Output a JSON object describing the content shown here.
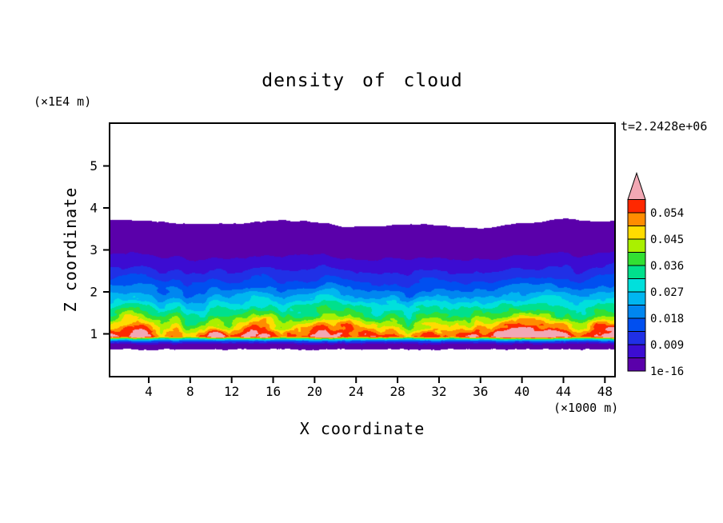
{
  "chart_data": {
    "type": "heatmap",
    "title": "density of cloud",
    "timestamp": "t=2.2428e+06",
    "xlabel": "X coordinate",
    "ylabel": "Z coordinate",
    "x_unit": "(×1000 m)",
    "y_unit": "(×1E4 m)",
    "x_range": [
      0.3,
      48.9
    ],
    "x_ticks": [
      4,
      8,
      12,
      16,
      20,
      24,
      28,
      32,
      36,
      40,
      44,
      48
    ],
    "z_range": [
      0,
      6
    ],
    "z_ticks": [
      1,
      2,
      3,
      4,
      5
    ],
    "grid": false,
    "legend_position": "right-colorbar",
    "levels": {
      "min_label": "1e-16",
      "step": 0.0045,
      "max_labeled": 0.054
    },
    "colorbar": {
      "labels_bottom_to_top": [
        "1e-16",
        "0.009",
        "0.018",
        "0.027",
        "0.036",
        "0.045",
        "0.054"
      ],
      "segment_colors_bottom_to_top": [
        "#5a00aa",
        "#3c0cd2",
        "#2030e6",
        "#004ff0",
        "#0086f0",
        "#00b6f0",
        "#00e0dc",
        "#00e08c",
        "#32e032",
        "#aaf000",
        "#ffdc00",
        "#ff8c00",
        "#ff2800"
      ],
      "overflow_color": "#f2a8b4"
    },
    "field": {
      "description": "Horizontally stratified cloud-density cross-section: white clear air above ~z=3.7 and below ~z=0.6; density increases downward from cloud top (violet, ~1e-16) through blue, cyan, green, yellow and orange bands to a red maximum layer near z=0.9-1.0 with pink patches exceeding 0.054; thin dark-blue band at cloud base.",
      "cloud_top_z": 3.66,
      "cloud_top_dip_x": 32.5,
      "cloud_base_z": 0.63,
      "peak_z": 0.93,
      "peak_density": 0.056,
      "band_boundaries_z": {
        "0.0045": 3.0,
        "0.009": 2.45,
        "0.0135": 2.1,
        "0.018": 1.85,
        "0.0225": 1.6,
        "0.027": 1.45,
        "0.0315": 1.3,
        "0.036": 1.2,
        "0.0405": 1.1,
        "0.045": 1.05,
        "0.0495": 1.0,
        "0.054": 0.95
      }
    }
  }
}
